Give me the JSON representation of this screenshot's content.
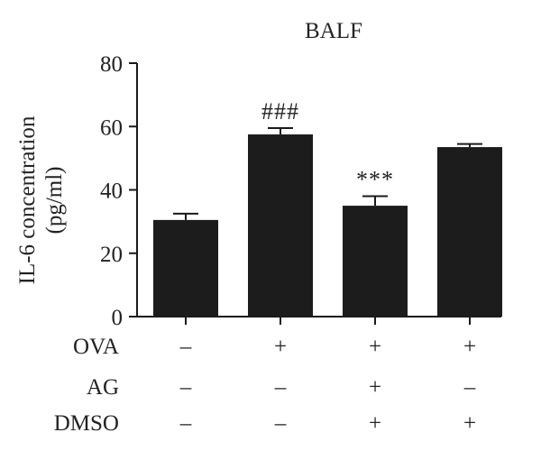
{
  "chart_data": {
    "type": "bar",
    "title": "BALF",
    "ylabel_line1": "IL-6 concentration",
    "ylabel_line2": "(pg/ml)",
    "ylim": [
      0,
      80
    ],
    "yticks": [
      "0",
      "20",
      "40",
      "60",
      "80"
    ],
    "ytick_values": [
      0,
      20,
      40,
      60,
      80
    ],
    "values": [
      30.5,
      57.5,
      35,
      53.5
    ],
    "errors": [
      2,
      2,
      3,
      1
    ],
    "annotations": [
      "",
      "###",
      "***",
      ""
    ],
    "treatments": [
      {
        "label": "OVA",
        "signs": [
          "–",
          "+",
          "+",
          "+"
        ]
      },
      {
        "label": "AG",
        "signs": [
          "–",
          "–",
          "+",
          "–"
        ]
      },
      {
        "label": "DMSO",
        "signs": [
          "–",
          "–",
          "+",
          "+"
        ]
      }
    ],
    "bar_color": "#1c1c1c",
    "grid": false,
    "legend": "none"
  }
}
